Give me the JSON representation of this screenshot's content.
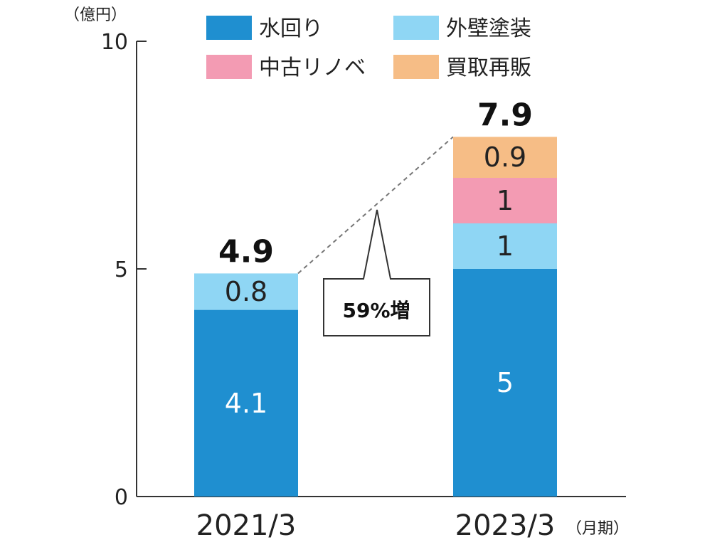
{
  "chart_data": {
    "type": "bar",
    "stacked": true,
    "unit_label": "（億円）",
    "x_suffix": "（月期）",
    "categories": [
      "2021/3",
      "2023/3"
    ],
    "ylim": [
      0,
      10
    ],
    "yticks": [
      0,
      5,
      10
    ],
    "series": [
      {
        "name": "水回り",
        "color": "#1f8fd0",
        "label_color": "#ffffff",
        "values": [
          4.1,
          5
        ]
      },
      {
        "name": "外壁塗装",
        "color": "#8fd6f4",
        "label_color": "#222222",
        "values": [
          0.8,
          1
        ]
      },
      {
        "name": "中古リノベ",
        "color": "#f39bb3",
        "label_color": "#222222",
        "values": [
          null,
          1
        ]
      },
      {
        "name": "買取再販",
        "color": "#f6bd86",
        "label_color": "#222222",
        "values": [
          null,
          0.9
        ]
      }
    ],
    "value_labels": [
      [
        "4.1",
        "0.8",
        null,
        null
      ],
      [
        "5",
        "1",
        "1",
        "0.9"
      ]
    ],
    "totals": [
      "4.9",
      "7.9"
    ],
    "annotation": {
      "text": "59%増"
    },
    "grid": false,
    "legend_position": "top"
  }
}
